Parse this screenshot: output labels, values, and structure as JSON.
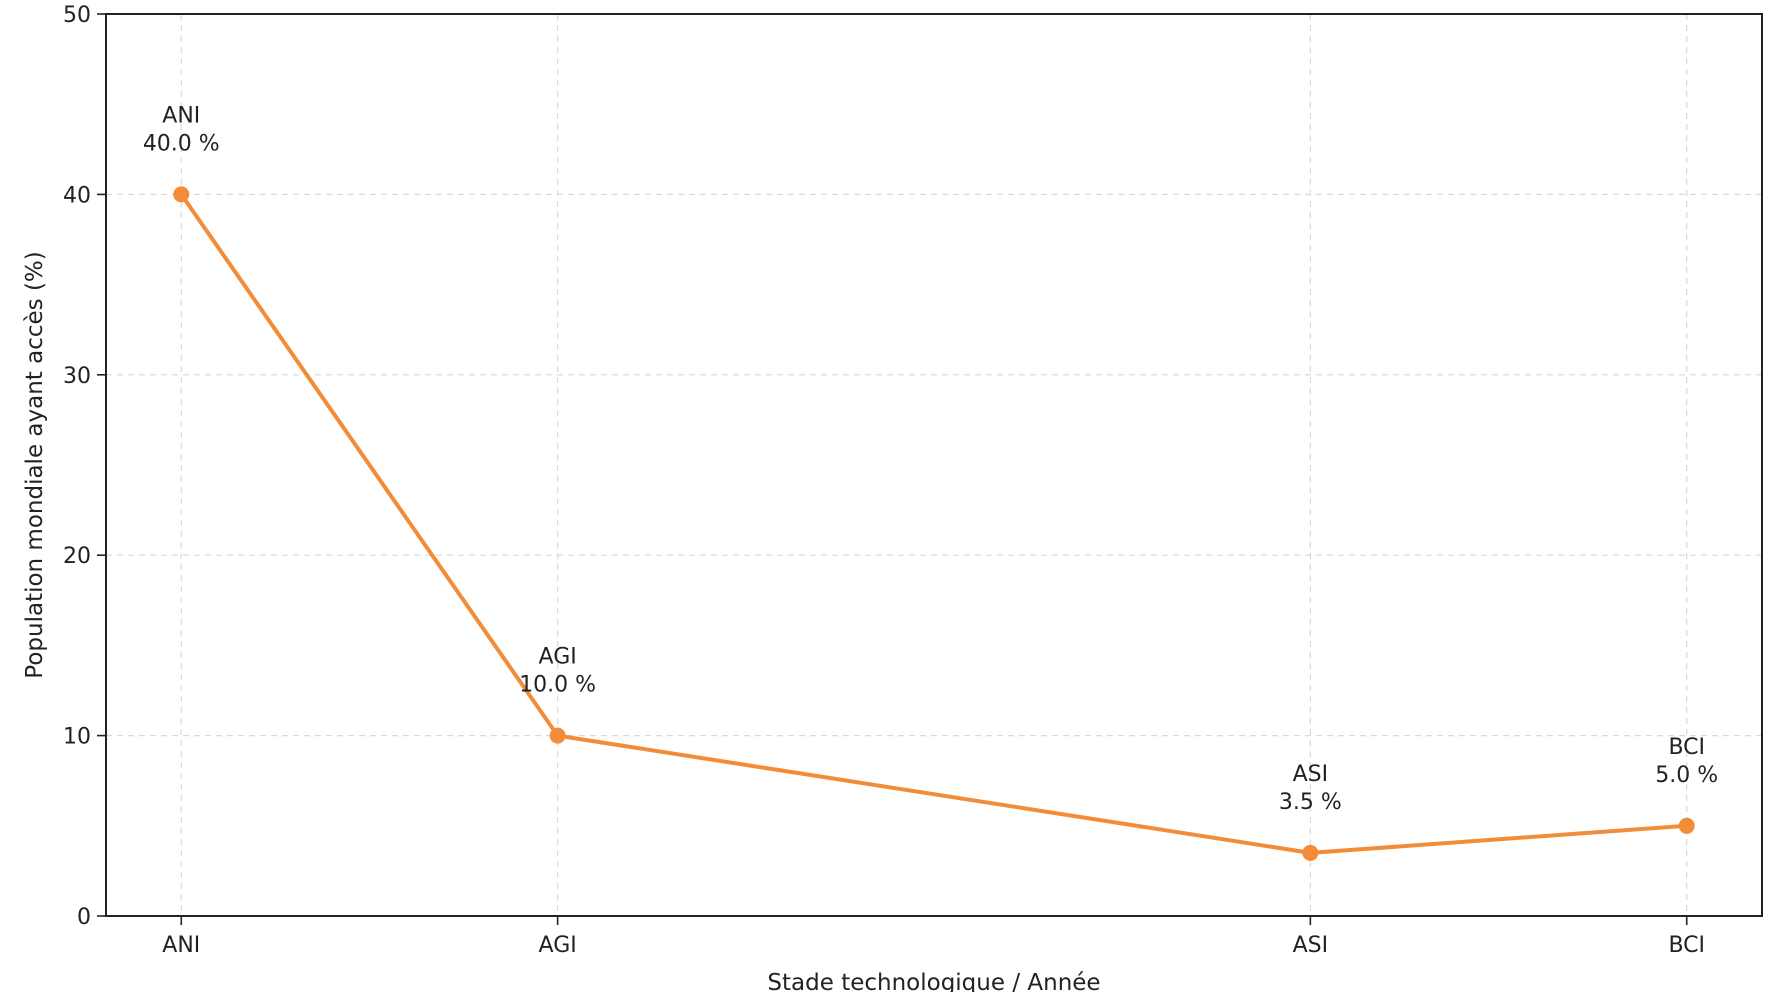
{
  "chart_data": {
    "type": "line",
    "title": "",
    "xlabel": "Stade technologique / Année",
    "ylabel": "Population mondiale ayant accès (%)",
    "categories": [
      "ANI",
      "AGI",
      "ASI",
      "BCI"
    ],
    "x": [
      0,
      1,
      3,
      4
    ],
    "xlim": [
      -0.2,
      4.2
    ],
    "ylim": [
      0,
      50
    ],
    "yticks": [
      0,
      10,
      20,
      30,
      40,
      50
    ],
    "grid": true,
    "series": [
      {
        "values": [
          40.0,
          10.0,
          3.5,
          5.0
        ],
        "color": "#f28c38"
      }
    ],
    "data_labels": [
      {
        "name": "ANI",
        "value": "40.0 %"
      },
      {
        "name": "AGI",
        "value": "10.0 %"
      },
      {
        "name": "ASI",
        "value": "3.5 %"
      },
      {
        "name": "BCI",
        "value": "5.0 %"
      }
    ]
  }
}
